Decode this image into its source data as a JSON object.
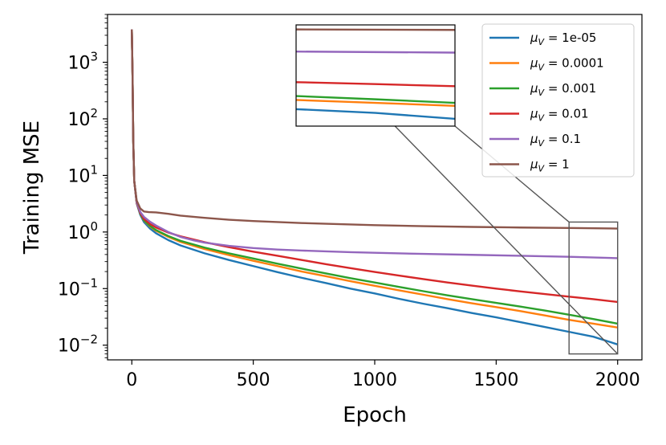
{
  "chart_data": {
    "type": "line",
    "xlabel": "Epoch",
    "ylabel": "Training MSE",
    "xscale": "linear",
    "yscale": "log",
    "xlim": [
      -100,
      2100
    ],
    "ylim": [
      0.0055,
      7000
    ],
    "x_ticks": [
      0,
      500,
      1000,
      1500,
      2000
    ],
    "x_tick_labels": [
      "0",
      "500",
      "1000",
      "1500",
      "2000"
    ],
    "y_ticks": [
      0.01,
      0.1,
      1,
      10,
      100,
      1000
    ],
    "y_tick_labels": [
      {
        "base": "10",
        "exp": "−2"
      },
      {
        "base": "10",
        "exp": "−1"
      },
      {
        "base": "10",
        "exp": "0"
      },
      {
        "base": "10",
        "exp": "1"
      },
      {
        "base": "10",
        "exp": "2"
      },
      {
        "base": "10",
        "exp": "3"
      }
    ],
    "legend_position": "top-right",
    "legend_symbol": "μ",
    "legend_subscript": "V",
    "series": [
      {
        "name": "1e-05",
        "color": "#1f77b4",
        "points": [
          [
            0,
            3800
          ],
          [
            3,
            600
          ],
          [
            6,
            40
          ],
          [
            10,
            8
          ],
          [
            20,
            3.2
          ],
          [
            35,
            2.0
          ],
          [
            50,
            1.5
          ],
          [
            75,
            1.15
          ],
          [
            100,
            0.95
          ],
          [
            150,
            0.72
          ],
          [
            200,
            0.58
          ],
          [
            300,
            0.42
          ],
          [
            400,
            0.32
          ],
          [
            500,
            0.25
          ],
          [
            600,
            0.195
          ],
          [
            700,
            0.155
          ],
          [
            800,
            0.125
          ],
          [
            900,
            0.1
          ],
          [
            1000,
            0.082
          ],
          [
            1100,
            0.066
          ],
          [
            1200,
            0.054
          ],
          [
            1300,
            0.045
          ],
          [
            1400,
            0.037
          ],
          [
            1500,
            0.031
          ],
          [
            1600,
            0.0255
          ],
          [
            1700,
            0.021
          ],
          [
            1800,
            0.0172
          ],
          [
            1900,
            0.0141
          ],
          [
            2000,
            0.0103
          ]
        ]
      },
      {
        "name": "0.0001",
        "color": "#ff7f0e",
        "points": [
          [
            0,
            3800
          ],
          [
            3,
            600
          ],
          [
            6,
            40
          ],
          [
            10,
            8
          ],
          [
            20,
            3.3
          ],
          [
            35,
            2.1
          ],
          [
            50,
            1.6
          ],
          [
            75,
            1.25
          ],
          [
            100,
            1.05
          ],
          [
            150,
            0.82
          ],
          [
            200,
            0.67
          ],
          [
            300,
            0.5
          ],
          [
            400,
            0.39
          ],
          [
            500,
            0.31
          ],
          [
            600,
            0.25
          ],
          [
            700,
            0.2
          ],
          [
            800,
            0.165
          ],
          [
            900,
            0.135
          ],
          [
            1000,
            0.112
          ],
          [
            1100,
            0.093
          ],
          [
            1200,
            0.078
          ],
          [
            1300,
            0.065
          ],
          [
            1400,
            0.055
          ],
          [
            1500,
            0.047
          ],
          [
            1600,
            0.04
          ],
          [
            1700,
            0.0335
          ],
          [
            1800,
            0.028
          ],
          [
            1900,
            0.024
          ],
          [
            2000,
            0.0205
          ]
        ]
      },
      {
        "name": "0.001",
        "color": "#2ca02c",
        "points": [
          [
            0,
            3800
          ],
          [
            3,
            600
          ],
          [
            6,
            40
          ],
          [
            10,
            8
          ],
          [
            20,
            3.3
          ],
          [
            35,
            2.1
          ],
          [
            50,
            1.62
          ],
          [
            75,
            1.28
          ],
          [
            100,
            1.08
          ],
          [
            150,
            0.85
          ],
          [
            200,
            0.7
          ],
          [
            300,
            0.53
          ],
          [
            400,
            0.42
          ],
          [
            500,
            0.34
          ],
          [
            600,
            0.275
          ],
          [
            700,
            0.225
          ],
          [
            800,
            0.185
          ],
          [
            900,
            0.153
          ],
          [
            1000,
            0.128
          ],
          [
            1100,
            0.107
          ],
          [
            1200,
            0.09
          ],
          [
            1300,
            0.076
          ],
          [
            1400,
            0.065
          ],
          [
            1500,
            0.056
          ],
          [
            1600,
            0.048
          ],
          [
            1700,
            0.041
          ],
          [
            1800,
            0.0345
          ],
          [
            1900,
            0.029
          ],
          [
            2000,
            0.024
          ]
        ]
      },
      {
        "name": "0.01",
        "color": "#d62728",
        "points": [
          [
            0,
            3800
          ],
          [
            3,
            600
          ],
          [
            6,
            40
          ],
          [
            10,
            8
          ],
          [
            20,
            3.3
          ],
          [
            35,
            2.15
          ],
          [
            50,
            1.7
          ],
          [
            75,
            1.38
          ],
          [
            100,
            1.2
          ],
          [
            150,
            0.98
          ],
          [
            200,
            0.84
          ],
          [
            300,
            0.66
          ],
          [
            400,
            0.54
          ],
          [
            500,
            0.45
          ],
          [
            600,
            0.38
          ],
          [
            700,
            0.32
          ],
          [
            800,
            0.27
          ],
          [
            900,
            0.23
          ],
          [
            1000,
            0.197
          ],
          [
            1100,
            0.17
          ],
          [
            1200,
            0.147
          ],
          [
            1300,
            0.128
          ],
          [
            1400,
            0.113
          ],
          [
            1500,
            0.1
          ],
          [
            1600,
            0.089
          ],
          [
            1700,
            0.08
          ],
          [
            1800,
            0.072
          ],
          [
            1900,
            0.065
          ],
          [
            2000,
            0.058
          ]
        ]
      },
      {
        "name": "0.1",
        "color": "#9467bd",
        "points": [
          [
            0,
            3800
          ],
          [
            3,
            600
          ],
          [
            6,
            40
          ],
          [
            10,
            8
          ],
          [
            20,
            3.4
          ],
          [
            35,
            2.25
          ],
          [
            50,
            1.85
          ],
          [
            75,
            1.52
          ],
          [
            100,
            1.3
          ],
          [
            150,
            1.0
          ],
          [
            200,
            0.82
          ],
          [
            250,
            0.72
          ],
          [
            300,
            0.65
          ],
          [
            400,
            0.57
          ],
          [
            500,
            0.52
          ],
          [
            600,
            0.49
          ],
          [
            700,
            0.47
          ],
          [
            800,
            0.455
          ],
          [
            900,
            0.44
          ],
          [
            1000,
            0.43
          ],
          [
            1200,
            0.41
          ],
          [
            1400,
            0.395
          ],
          [
            1600,
            0.38
          ],
          [
            1800,
            0.365
          ],
          [
            2000,
            0.345
          ]
        ]
      },
      {
        "name": "1",
        "color": "#8c564b",
        "points": [
          [
            0,
            3800
          ],
          [
            3,
            600
          ],
          [
            6,
            40
          ],
          [
            10,
            8
          ],
          [
            20,
            3.6
          ],
          [
            35,
            2.6
          ],
          [
            50,
            2.3
          ],
          [
            70,
            2.25
          ],
          [
            100,
            2.22
          ],
          [
            150,
            2.1
          ],
          [
            200,
            1.95
          ],
          [
            300,
            1.78
          ],
          [
            400,
            1.65
          ],
          [
            500,
            1.56
          ],
          [
            600,
            1.5
          ],
          [
            700,
            1.44
          ],
          [
            800,
            1.4
          ],
          [
            900,
            1.36
          ],
          [
            1000,
            1.32
          ],
          [
            1200,
            1.27
          ],
          [
            1400,
            1.23
          ],
          [
            1600,
            1.2
          ],
          [
            1800,
            1.18
          ],
          [
            2000,
            1.15
          ]
        ]
      }
    ],
    "inset": {
      "x_range": [
        1800,
        2000
      ],
      "y_range": [
        0.007,
        1.5
      ]
    }
  }
}
